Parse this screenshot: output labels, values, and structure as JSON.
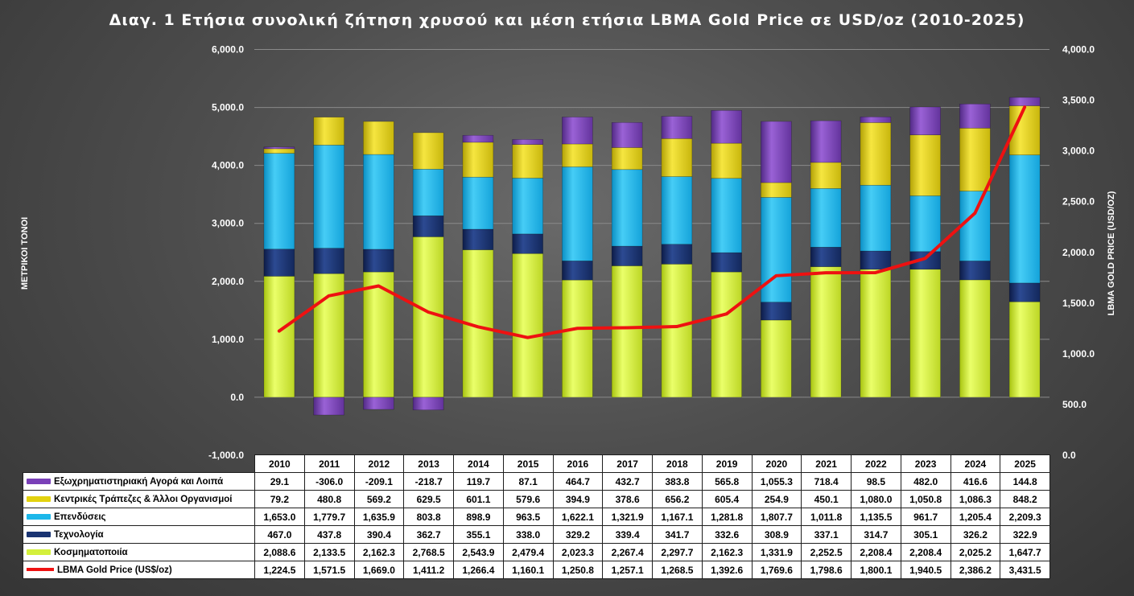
{
  "title": "Διαγ. 1 Ετήσια συνολική ζήτηση χρυσού και μέση ετήσια LBMA Gold Price σε USD/oz (2010-2025)",
  "left_axis_label": "ΜΕΤΡΙΚΟΙ ΤΟΝΟΙ",
  "right_axis_label": "LBMA GOLD PRICE (USD/OZ)",
  "left_ticks": [
    "-1,000.0",
    "0.0",
    "1,000.0",
    "2,000.0",
    "3,000.0",
    "4,000.0",
    "5,000.0",
    "6,000.0"
  ],
  "right_ticks": [
    "0.0",
    "500.0",
    "1,000.0",
    "1,500.0",
    "2,000.0",
    "2,500.0",
    "3,000.0",
    "3,500.0",
    "4,000.0"
  ],
  "chart_data": {
    "type": "bar",
    "stacked": true,
    "categories": [
      "2010",
      "2011",
      "2012",
      "2013",
      "2014",
      "2015",
      "2016",
      "2017",
      "2018",
      "2019",
      "2020",
      "2021",
      "2022",
      "2023",
      "2024",
      "2025"
    ],
    "ylim": [
      -1000,
      6000
    ],
    "y2lim": [
      0,
      4000
    ],
    "series": [
      {
        "name": "Κοσμηματοποιία",
        "type": "bar",
        "color": "#d4f03c",
        "values": [
          2088.6,
          2133.5,
          2162.3,
          2768.5,
          2543.9,
          2479.4,
          2023.3,
          2267.4,
          2297.7,
          2162.3,
          1331.9,
          2252.5,
          2208.4,
          2208.4,
          2025.2,
          1647.7
        ],
        "labels": [
          "2,088.6",
          "2,133.5",
          "2,162.3",
          "2,768.5",
          "2,543.9",
          "2,479.4",
          "2,023.3",
          "2,267.4",
          "2,297.7",
          "2,162.3",
          "1,331.9",
          "2,252.5",
          "2,208.4",
          "2,208.4",
          "2,025.2",
          "1,647.7"
        ]
      },
      {
        "name": "Τεχνολογία",
        "type": "bar",
        "color": "#1a3472",
        "values": [
          467.0,
          437.8,
          390.4,
          362.7,
          355.1,
          338.0,
          329.2,
          339.4,
          341.7,
          332.6,
          308.9,
          337.1,
          314.7,
          305.1,
          326.2,
          322.9
        ],
        "labels": [
          "467.0",
          "437.8",
          "390.4",
          "362.7",
          "355.1",
          "338.0",
          "329.2",
          "339.4",
          "341.7",
          "332.6",
          "308.9",
          "337.1",
          "314.7",
          "305.1",
          "326.2",
          "322.9"
        ]
      },
      {
        "name": "Επενδύσεις",
        "type": "bar",
        "color": "#1cb7ea",
        "values": [
          1653.0,
          1779.7,
          1635.9,
          803.8,
          898.9,
          963.5,
          1622.1,
          1321.9,
          1167.1,
          1281.8,
          1807.7,
          1011.8,
          1135.5,
          961.7,
          1205.4,
          2209.3
        ],
        "labels": [
          "1,653.0",
          "1,779.7",
          "1,635.9",
          "803.8",
          "898.9",
          "963.5",
          "1,622.1",
          "1,321.9",
          "1,167.1",
          "1,281.8",
          "1,807.7",
          "1,011.8",
          "1,135.5",
          "961.7",
          "1,205.4",
          "2,209.3"
        ]
      },
      {
        "name": "Κεντρικές Τράπεζες & Άλλοι Οργανισμοί",
        "type": "bar",
        "color": "#e3d20e",
        "values": [
          79.2,
          480.8,
          569.2,
          629.5,
          601.1,
          579.6,
          394.9,
          378.6,
          656.2,
          605.4,
          254.9,
          450.1,
          1080.0,
          1050.8,
          1086.3,
          848.2
        ],
        "labels": [
          "79.2",
          "480.8",
          "569.2",
          "629.5",
          "601.1",
          "579.6",
          "394.9",
          "378.6",
          "656.2",
          "605.4",
          "254.9",
          "450.1",
          "1,080.0",
          "1,050.8",
          "1,086.3",
          "848.2"
        ]
      },
      {
        "name": "Εξωχρηματιστηριακή Αγορά και Λοιπά",
        "type": "bar",
        "color": "#7a40b8",
        "values": [
          29.1,
          -306.0,
          -209.1,
          -218.7,
          119.7,
          87.1,
          464.7,
          432.7,
          383.8,
          565.8,
          1055.3,
          718.4,
          98.5,
          482.0,
          416.6,
          144.8
        ],
        "labels": [
          "29.1",
          "-306.0",
          "-209.1",
          "-218.7",
          "119.7",
          "87.1",
          "464.7",
          "432.7",
          "383.8",
          "565.8",
          "1,055.3",
          "718.4",
          "98.5",
          "482.0",
          "416.6",
          "144.8"
        ]
      },
      {
        "name": "LBMA Gold Price (US$/oz)",
        "type": "line",
        "axis": "right",
        "color": "#ee1111",
        "values": [
          1224.5,
          1571.5,
          1669.0,
          1411.2,
          1266.4,
          1160.1,
          1250.8,
          1257.1,
          1268.5,
          1392.6,
          1769.6,
          1798.6,
          1800.1,
          1940.5,
          2386.2,
          3431.5
        ],
        "labels": [
          "1,224.5",
          "1,571.5",
          "1,669.0",
          "1,411.2",
          "1,266.4",
          "1,160.1",
          "1,250.8",
          "1,257.1",
          "1,268.5",
          "1,392.6",
          "1,769.6",
          "1,798.6",
          "1,800.1",
          "1,940.5",
          "2,386.2",
          "3,431.5"
        ]
      }
    ],
    "table_row_order": [
      4,
      3,
      2,
      1,
      0,
      5
    ]
  }
}
